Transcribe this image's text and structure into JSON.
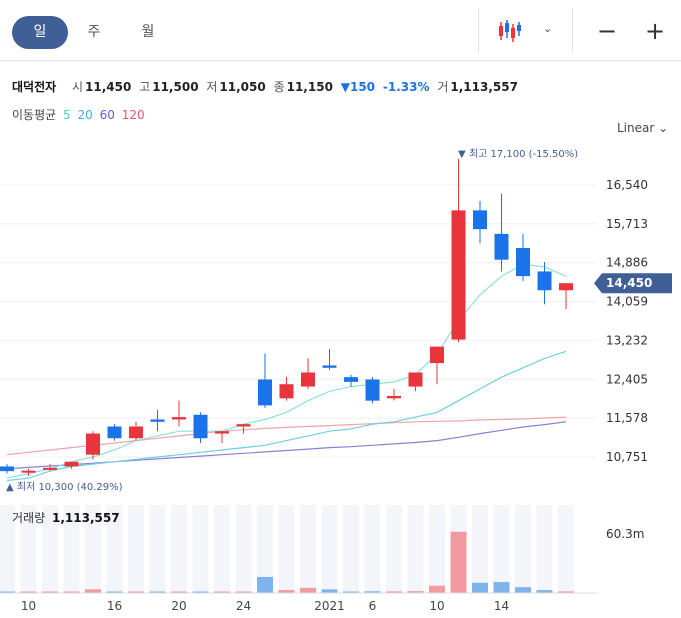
{
  "toolbar": {
    "periods": [
      "일",
      "주",
      "월"
    ],
    "active_period": "일",
    "chart_style_icon": "candlestick-icon",
    "zoom_out": "−",
    "zoom_in": "+"
  },
  "header": {
    "name": "대덕전자",
    "open_label": "시",
    "open": "11,450",
    "high_label": "고",
    "high": "11,500",
    "low_label": "저",
    "low": "11,050",
    "close_label": "종",
    "close": "11,150",
    "change": "▼150",
    "change_pct": "-1.33%",
    "volume_label": "거",
    "volume": "1,113,557"
  },
  "ma_legend": {
    "label": "이동평균",
    "items": [
      {
        "text": "5",
        "color": "#4ec9c9"
      },
      {
        "text": "20",
        "color": "#41b3d9"
      },
      {
        "text": "60",
        "color": "#6b5bc6"
      },
      {
        "text": "120",
        "color": "#e8576a"
      }
    ]
  },
  "scale_label": "Linear",
  "colors": {
    "up": "#e8353b",
    "down": "#1a73e8",
    "current_tag": "#3f5f96"
  },
  "chart_data": {
    "type": "candlestick",
    "x_tick_labels": [
      "10",
      "16",
      "20",
      "24",
      "2021",
      "6",
      "10",
      "14"
    ],
    "x_tick_index": [
      1,
      5,
      8,
      11,
      15,
      17,
      20,
      23
    ],
    "y_ticks": [
      10751,
      11578,
      12405,
      13232,
      14059,
      14886,
      15713,
      16540
    ],
    "y_tick_labels": [
      "10,751",
      "11,578",
      "12,405",
      "13,232",
      "14,059",
      "14,886",
      "15,713",
      "16,540"
    ],
    "ylim": [
      10200,
      17400
    ],
    "current_price": 14450,
    "current_price_label": "14,450",
    "high_annotation": "최고 17,100 (-15.50%)",
    "low_annotation": "최저 10,300 (40.29%)",
    "candles": [
      {
        "o": 10550,
        "h": 10600,
        "l": 10400,
        "c": 10450
      },
      {
        "o": 10450,
        "h": 10500,
        "l": 10350,
        "c": 10460
      },
      {
        "o": 10500,
        "h": 10600,
        "l": 10450,
        "c": 10520
      },
      {
        "o": 10550,
        "h": 10650,
        "l": 10500,
        "c": 10650
      },
      {
        "o": 10800,
        "h": 11300,
        "l": 10700,
        "c": 11250
      },
      {
        "o": 11400,
        "h": 11450,
        "l": 11100,
        "c": 11150
      },
      {
        "o": 11150,
        "h": 11500,
        "l": 11100,
        "c": 11400
      },
      {
        "o": 11550,
        "h": 11750,
        "l": 11300,
        "c": 11500
      },
      {
        "o": 11550,
        "h": 11950,
        "l": 11400,
        "c": 11600
      },
      {
        "o": 11650,
        "h": 11700,
        "l": 11050,
        "c": 11150
      },
      {
        "o": 11250,
        "h": 11300,
        "l": 11050,
        "c": 11300
      },
      {
        "o": 11400,
        "h": 11450,
        "l": 11250,
        "c": 11450
      },
      {
        "o": 12400,
        "h": 12950,
        "l": 11800,
        "c": 11850
      },
      {
        "o": 12000,
        "h": 12450,
        "l": 11950,
        "c": 12300
      },
      {
        "o": 12250,
        "h": 12850,
        "l": 12200,
        "c": 12550
      },
      {
        "o": 12700,
        "h": 13050,
        "l": 12600,
        "c": 12650
      },
      {
        "o": 12450,
        "h": 12500,
        "l": 12250,
        "c": 12350
      },
      {
        "o": 12400,
        "h": 12450,
        "l": 11900,
        "c": 11950
      },
      {
        "o": 12000,
        "h": 12200,
        "l": 11950,
        "c": 12050
      },
      {
        "o": 12250,
        "h": 12550,
        "l": 12150,
        "c": 12550
      },
      {
        "o": 12750,
        "h": 13100,
        "l": 12300,
        "c": 13100
      },
      {
        "o": 13250,
        "h": 17100,
        "l": 13200,
        "c": 16000
      },
      {
        "o": 16000,
        "h": 16200,
        "l": 15300,
        "c": 15600
      },
      {
        "o": 15500,
        "h": 16350,
        "l": 14700,
        "c": 14950
      },
      {
        "o": 15200,
        "h": 15500,
        "l": 14500,
        "c": 14600
      },
      {
        "o": 14700,
        "h": 14900,
        "l": 14000,
        "c": 14300
      },
      {
        "o": 14300,
        "h": 14450,
        "l": 13900,
        "c": 14450
      }
    ],
    "ma5": [
      10300,
      10400,
      10500,
      10650,
      10750,
      10900,
      11100,
      11200,
      11300,
      11300,
      11300,
      11450,
      11550,
      11700,
      11950,
      12150,
      12250,
      12300,
      12350,
      12500,
      12950,
      13650,
      14200,
      14600,
      14850,
      14800,
      14600
    ],
    "ma20": [
      10250,
      10300,
      10450,
      10550,
      10600,
      10650,
      10700,
      10750,
      10800,
      10850,
      10900,
      10950,
      11000,
      11100,
      11200,
      11300,
      11350,
      11450,
      11500,
      11600,
      11700,
      11950,
      12200,
      12450,
      12650,
      12850,
      13000
    ],
    "ma60": [
      10500,
      10530,
      10560,
      10590,
      10620,
      10650,
      10680,
      10710,
      10740,
      10770,
      10800,
      10830,
      10860,
      10890,
      10920,
      10950,
      10970,
      11000,
      11030,
      11060,
      11100,
      11170,
      11250,
      11320,
      11390,
      11440,
      11500
    ],
    "ma120": [
      10800,
      10850,
      10900,
      10950,
      11000,
      11050,
      11100,
      11150,
      11200,
      11250,
      11300,
      11330,
      11360,
      11380,
      11400,
      11420,
      11440,
      11460,
      11480,
      11500,
      11510,
      11520,
      11540,
      11550,
      11560,
      11580,
      11600
    ],
    "volume_label": "거래량",
    "volume_value": "1,113,557",
    "volume_axis_label": "60.3m",
    "volume_max": 60300000,
    "volumes": [
      300000,
      150000,
      300000,
      800000,
      2500000,
      700000,
      1000000,
      900000,
      1000000,
      800000,
      600000,
      900000,
      11000000,
      2000000,
      3500000,
      2500000,
      1000000,
      1200000,
      1100000,
      1300000,
      5000000,
      42000000,
      7000000,
      7500000,
      4000000,
      2000000,
      1113557
    ]
  }
}
